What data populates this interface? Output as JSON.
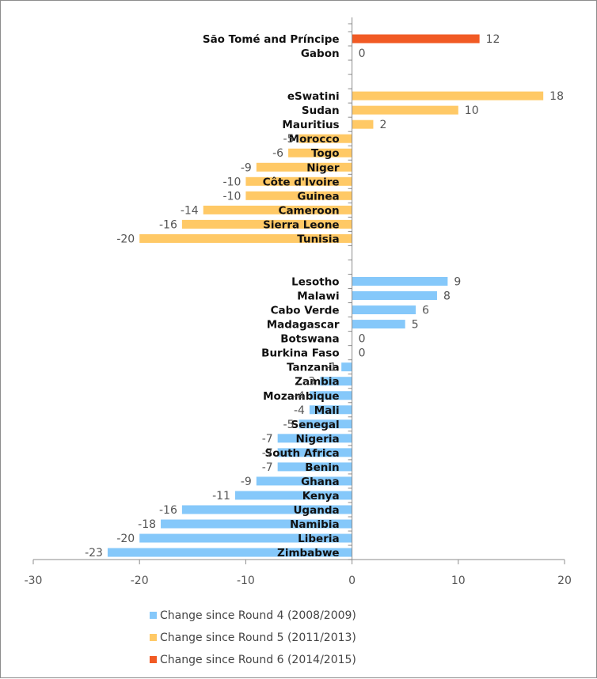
{
  "chart_data": {
    "type": "bar",
    "orientation": "horizontal",
    "title": "",
    "xlabel": "",
    "ylabel": "",
    "xlim": [
      -30,
      20
    ],
    "x_ticks": [
      -30,
      -20,
      -10,
      0,
      10,
      20
    ],
    "x_tick_labels": [
      "-30",
      "-20",
      "-10",
      "0",
      "10",
      "20"
    ],
    "grid": false,
    "legend_position": "bottom",
    "series": [
      {
        "name": "Change since Round 6 (2014/2015)",
        "color": "#F15A24",
        "categories": [
          "São Tomé and Príncipe",
          "Gabon"
        ],
        "values": [
          12,
          0
        ]
      },
      {
        "name": "Change since Round 5 (2011/2013)",
        "color": "#FFC966",
        "categories": [
          "eSwatini",
          "Sudan",
          "Mauritius",
          "Morocco",
          "Togo",
          "Niger",
          "Côte d'Ivoire",
          "Guinea",
          "Cameroon",
          "Sierra Leone",
          "Tunisia"
        ],
        "values": [
          18,
          10,
          2,
          -5,
          -6,
          -9,
          -10,
          -10,
          -14,
          -16,
          -20
        ]
      },
      {
        "name": "Change since Round 4 (2008/2009)",
        "color": "#85C8FA",
        "categories": [
          "Lesotho",
          "Malawi",
          "Cabo Verde",
          "Madagascar",
          "Botswana",
          "Burkina Faso",
          "Tanzania",
          "Zambia",
          "Mozambique",
          "Mali",
          "Senegal",
          "Nigeria",
          "South Africa",
          "Benin",
          "Ghana",
          "Kenya",
          "Uganda",
          "Namibia",
          "Liberia",
          "Zimbabwe"
        ],
        "values": [
          9,
          8,
          6,
          5,
          0,
          0,
          -1,
          -3,
          -4,
          -4,
          -5,
          -7,
          -7,
          -7,
          -9,
          -11,
          -16,
          -18,
          -20,
          -23
        ]
      }
    ],
    "legend": [
      {
        "label": "Change since Round 4 (2008/2009)",
        "color": "#85C8FA"
      },
      {
        "label": "Change since Round 5 (2011/2013)",
        "color": "#FFC966"
      },
      {
        "label": "Change since Round 6 (2014/2015)",
        "color": "#F15A24"
      }
    ],
    "group_gap_rows": 2
  }
}
